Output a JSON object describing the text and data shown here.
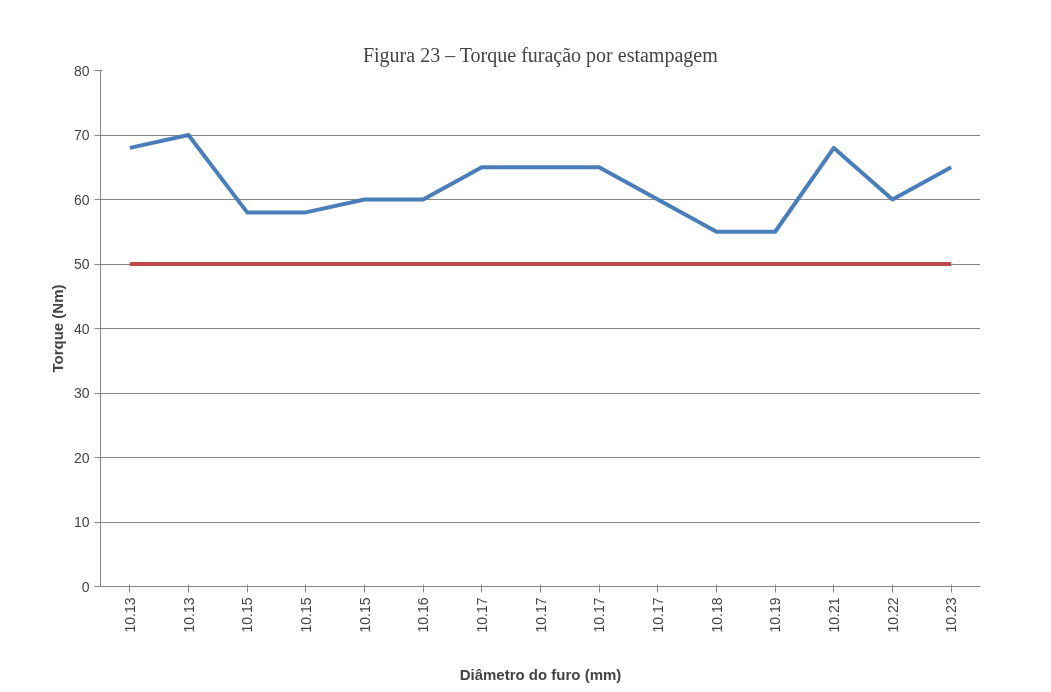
{
  "chart_data": {
    "type": "line",
    "title": "Figura 23 – Torque furação por estampagem",
    "xlabel": "Diâmetro do furo (mm)",
    "ylabel": "Torque (Nm)",
    "categories": [
      "10.13",
      "10.13",
      "10.15",
      "10.15",
      "10.15",
      "10.16",
      "10.17",
      "10.17",
      "10.17",
      "10.17",
      "10.18",
      "10.19",
      "10.21",
      "10.22",
      "10.23"
    ],
    "series": [
      {
        "color": "#4a7ebb",
        "values": [
          68,
          70,
          58,
          58,
          60,
          60,
          65,
          65,
          65,
          60,
          55,
          55,
          68,
          60,
          65
        ]
      },
      {
        "color": "#be4b48",
        "values": [
          50,
          50,
          50,
          50,
          50,
          50,
          50,
          50,
          50,
          50,
          50,
          50,
          50,
          50,
          50
        ]
      }
    ],
    "ylim": [
      0,
      80
    ],
    "yticks": [
      0,
      10,
      20,
      30,
      40,
      50,
      60,
      70,
      80
    ],
    "grid": "y",
    "marker": "none",
    "line_style": "solid"
  }
}
